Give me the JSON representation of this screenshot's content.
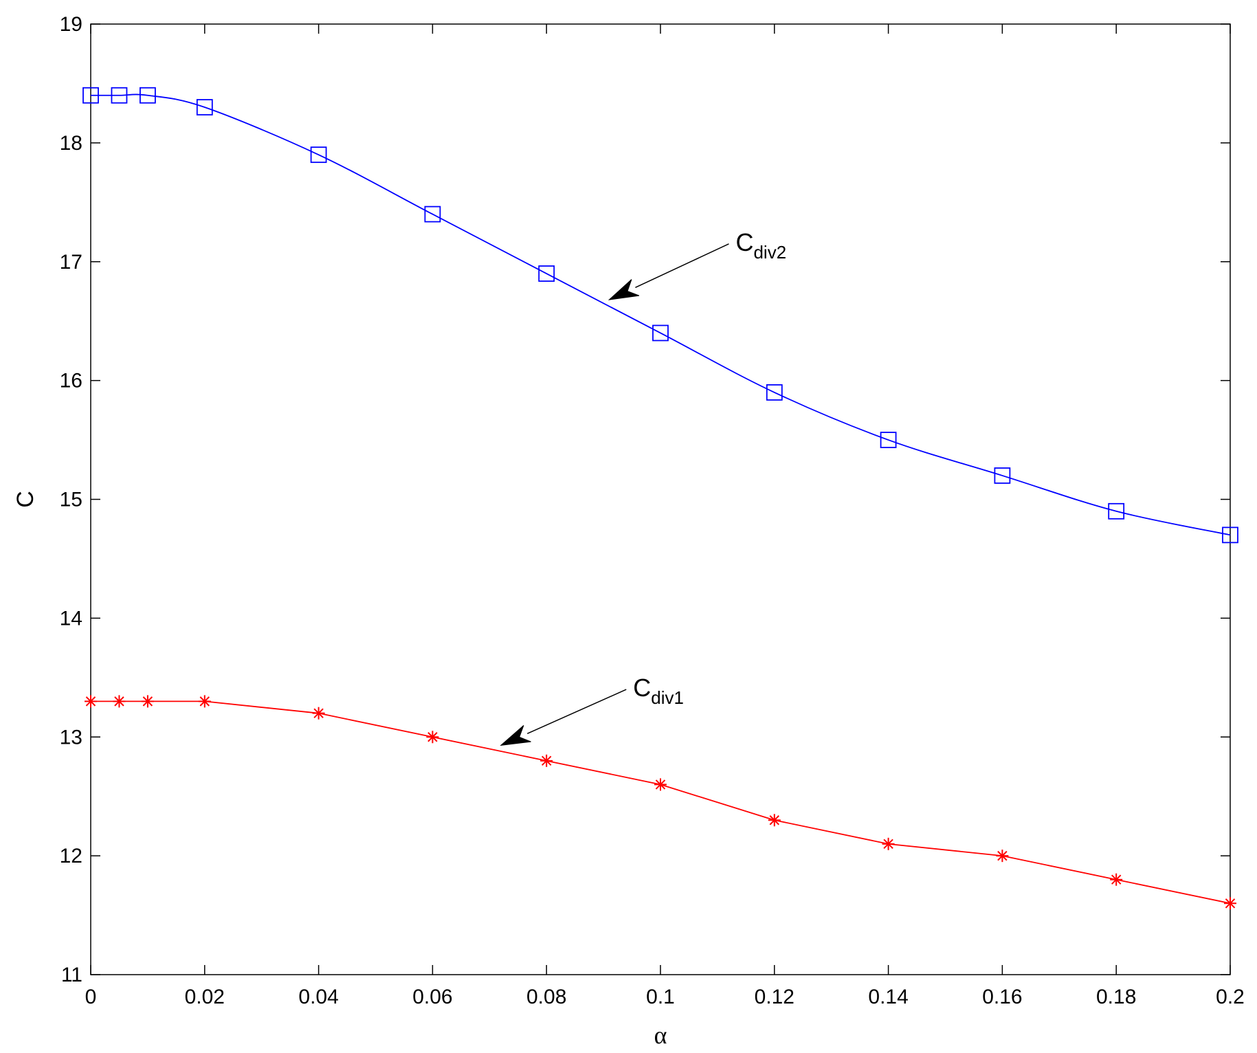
{
  "chart_data": {
    "type": "line",
    "xlabel": "α",
    "ylabel": "C",
    "xlim": [
      0,
      0.2
    ],
    "ylim": [
      11,
      19
    ],
    "x_ticks": [
      0,
      0.02,
      0.04,
      0.06,
      0.08,
      0.1,
      0.12,
      0.14,
      0.16,
      0.18,
      0.2
    ],
    "x_tick_labels": [
      "0",
      "0.02",
      "0.04",
      "0.06",
      "0.08",
      "0.1",
      "0.12",
      "0.14",
      "0.16",
      "0.18",
      "0.2"
    ],
    "y_ticks": [
      11,
      12,
      13,
      14,
      15,
      16,
      17,
      18,
      19
    ],
    "y_tick_labels": [
      "11",
      "12",
      "13",
      "14",
      "15",
      "16",
      "17",
      "18",
      "19"
    ],
    "grid": false,
    "series": [
      {
        "marker": "square",
        "color": "#0000ff",
        "x": [
          0,
          0.005,
          0.01,
          0.02,
          0.04,
          0.06,
          0.08,
          0.1,
          0.12,
          0.14,
          0.16,
          0.18,
          0.2
        ],
        "y": [
          18.4,
          18.4,
          18.4,
          18.3,
          17.9,
          17.4,
          16.9,
          16.4,
          15.9,
          15.5,
          15.2,
          14.9,
          14.7
        ]
      },
      {
        "marker": "asterisk",
        "color": "#ff0000",
        "x": [
          0,
          0.005,
          0.01,
          0.02,
          0.04,
          0.06,
          0.08,
          0.1,
          0.12,
          0.14,
          0.16,
          0.18,
          0.2
        ],
        "y": [
          13.3,
          13.3,
          13.3,
          13.3,
          13.2,
          13.0,
          12.8,
          12.6,
          12.3,
          12.1,
          12.0,
          11.8,
          11.6
        ]
      }
    ],
    "annotations": [
      {
        "main": "C",
        "sub": "div2",
        "arrow_tip": [
          0.091,
          16.68
        ],
        "arrow_tail": [
          0.112,
          17.15
        ]
      },
      {
        "main": "C",
        "sub": "div1",
        "arrow_tip": [
          0.072,
          12.93
        ],
        "arrow_tail": [
          0.094,
          13.4
        ]
      }
    ]
  }
}
